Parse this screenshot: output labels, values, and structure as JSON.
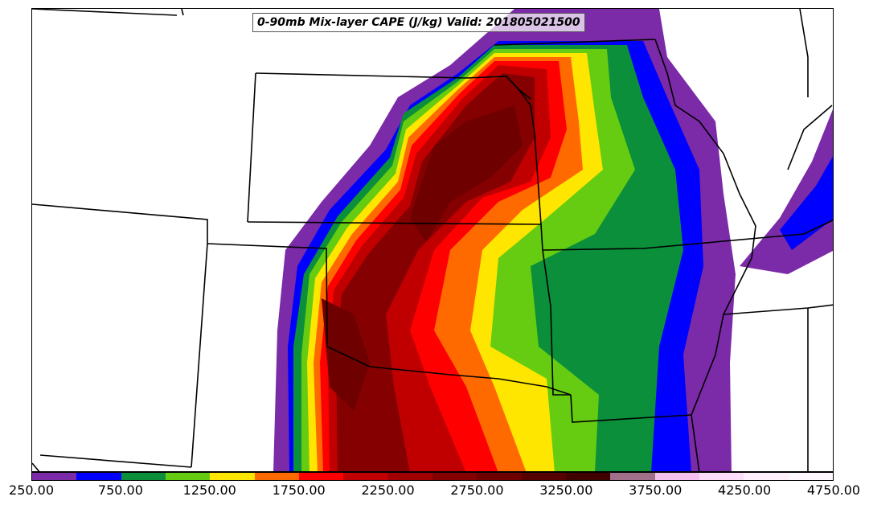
{
  "title": "0-90mb Mix-layer CAPE (J/kg) Valid: 201805021500",
  "colorbar": {
    "colors": [
      "#7b2aa8",
      "#0000ff",
      "#0b8f3a",
      "#66cc11",
      "#ffe600",
      "#ff6a00",
      "#ff0000",
      "#c00000",
      "#a00000",
      "#850000",
      "#6e0000",
      "#560000",
      "#400000",
      "#a06f8a",
      "#f5c0f0",
      "#fcdcf8",
      "#fff0fc",
      "#fff8fe"
    ],
    "tick_labels": [
      "250.00",
      "750.00",
      "1250.00",
      "1750.00",
      "2250.00",
      "2750.00",
      "3250.00",
      "3750.00",
      "4250.00",
      "4750.00"
    ]
  },
  "legend_levels_jkg": [
    250,
    500,
    750,
    1000,
    1250,
    1500,
    1750,
    2000,
    2250,
    2500,
    2750,
    3000,
    3250,
    3500,
    3750,
    4000,
    4250,
    4500,
    4750
  ]
}
